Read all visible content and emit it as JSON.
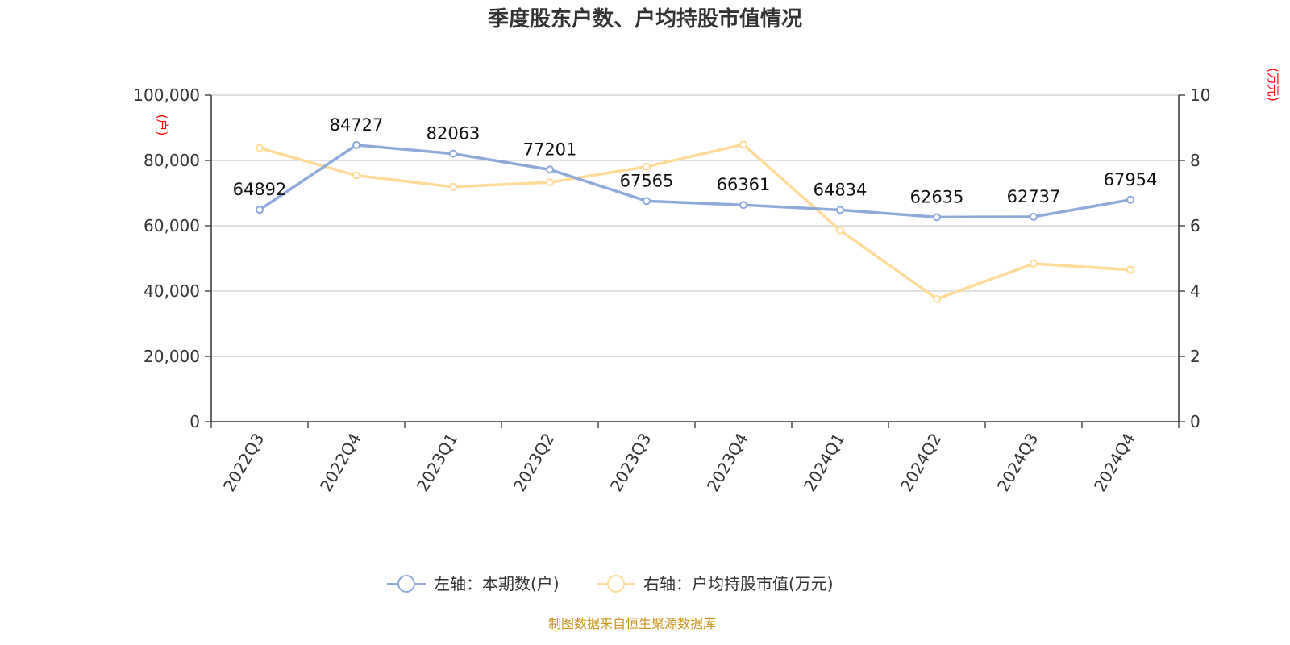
{
  "chart_data": {
    "type": "line",
    "title": "季度股东户数、户均持股市值情况",
    "categories": [
      "2022Q3",
      "2022Q4",
      "2023Q1",
      "2023Q2",
      "2023Q3",
      "2023Q4",
      "2024Q1",
      "2024Q2",
      "2024Q3",
      "2024Q4"
    ],
    "left_axis": {
      "unit": "(户)",
      "ylim": [
        0,
        100000
      ],
      "ticks": [
        "0",
        "20,000",
        "40,000",
        "60,000",
        "80,000",
        "100,000"
      ]
    },
    "right_axis": {
      "unit": "(万元)",
      "ylim": [
        0,
        10
      ],
      "ticks": [
        "0",
        "2",
        "4",
        "6",
        "8",
        "10"
      ]
    },
    "series": [
      {
        "name": "左轴：本期数(户)",
        "axis": "left",
        "color": "#8eaadb",
        "values": [
          64892,
          84727,
          82063,
          77201,
          67565,
          66361,
          64834,
          62635,
          62737,
          67954
        ],
        "labels": [
          "64892",
          "84727",
          "82063",
          "77201",
          "67565",
          "66361",
          "64834",
          "62635",
          "62737",
          "67954"
        ]
      },
      {
        "name": "右轴：户均持股市值(万元)",
        "axis": "right",
        "color": "#ffdb99",
        "values": [
          8.38,
          7.54,
          7.19,
          7.33,
          7.81,
          8.49,
          5.86,
          3.76,
          4.84,
          4.65
        ]
      }
    ],
    "grid": true,
    "legend_position": "bottom-center"
  },
  "source_note": "制图数据来自恒生聚源数据库"
}
